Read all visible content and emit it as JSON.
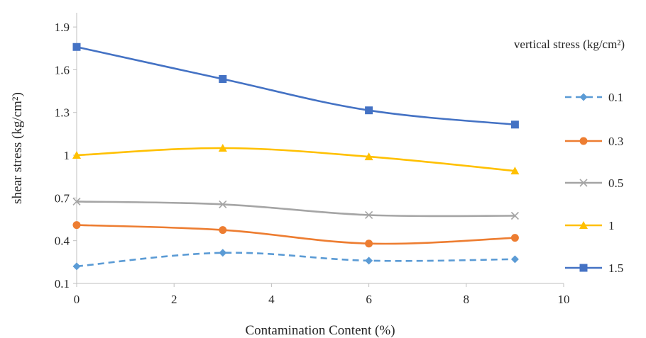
{
  "chart_data": {
    "type": "line",
    "title": "",
    "xlabel": "Contamination Content (%)",
    "ylabel": "shear stress (kg/cm²)",
    "xlim": [
      0,
      10
    ],
    "ylim": [
      0.1,
      2.0
    ],
    "x_ticks": [
      "0",
      "2",
      "4",
      "6",
      "8",
      "10"
    ],
    "y_ticks": [
      "0.1",
      "0.4",
      "0.7",
      "1",
      "1.3",
      "1.6",
      "1.9"
    ],
    "grid": false,
    "legend": {
      "title": "vertical stress (kg/cm²)",
      "placement": "right"
    },
    "x": [
      0,
      3,
      6,
      9
    ],
    "series": [
      {
        "name": "0.1",
        "values": [
          0.22,
          0.315,
          0.26,
          0.27
        ],
        "color": "#5b9bd5",
        "marker": "diamond",
        "dashed": true
      },
      {
        "name": "0.3",
        "values": [
          0.51,
          0.475,
          0.38,
          0.42
        ],
        "color": "#ed7d31",
        "marker": "circle",
        "dashed": false
      },
      {
        "name": "0.5",
        "values": [
          0.675,
          0.655,
          0.58,
          0.575
        ],
        "color": "#a5a5a5",
        "marker": "x",
        "dashed": false
      },
      {
        "name": "1",
        "values": [
          1.0,
          1.05,
          0.99,
          0.89
        ],
        "color": "#ffc000",
        "marker": "triangle",
        "dashed": false
      },
      {
        "name": "1.5",
        "values": [
          1.76,
          1.535,
          1.315,
          1.215
        ],
        "color": "#4472c4",
        "marker": "square",
        "dashed": false
      }
    ]
  }
}
